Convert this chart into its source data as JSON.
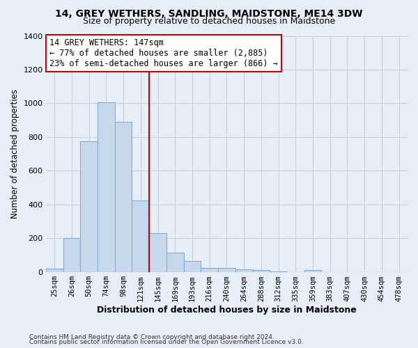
{
  "title1": "14, GREY WETHERS, SANDLING, MAIDSTONE, ME14 3DW",
  "title2": "Size of property relative to detached houses in Maidstone",
  "xlabel": "Distribution of detached houses by size in Maidstone",
  "ylabel": "Number of detached properties",
  "footnote1": "Contains HM Land Registry data © Crown copyright and database right 2024.",
  "footnote2": "Contains public sector information licensed under the Open Government Licence v3.0.",
  "bar_labels": [
    "25sqm",
    "26sqm",
    "50sqm",
    "74sqm",
    "98sqm",
    "121sqm",
    "145sqm",
    "169sqm",
    "193sqm",
    "216sqm",
    "240sqm",
    "264sqm",
    "288sqm",
    "312sqm",
    "335sqm",
    "359sqm",
    "383sqm",
    "407sqm",
    "430sqm",
    "454sqm",
    "478sqm"
  ],
  "bar_values": [
    20,
    200,
    775,
    1005,
    890,
    425,
    230,
    115,
    65,
    25,
    25,
    15,
    10,
    5,
    0,
    10,
    0,
    0,
    0,
    0,
    0
  ],
  "bar_color": "#c8d8ec",
  "bar_edgecolor": "#7aafd0",
  "vline_position": 5.5,
  "vline_color": "#cc0000",
  "ylim_max": 1400,
  "yticks": [
    0,
    200,
    400,
    600,
    800,
    1000,
    1200,
    1400
  ],
  "annotation_title": "14 GREY WETHERS: 147sqm",
  "annotation_line1": "← 77% of detached houses are smaller (2,885)",
  "annotation_line2": "23% of semi-detached houses are larger (866) →",
  "bg_color": "#e8eef8",
  "grid_color": "#c8d0e0",
  "title_fontsize": 10,
  "subtitle_fontsize": 9
}
